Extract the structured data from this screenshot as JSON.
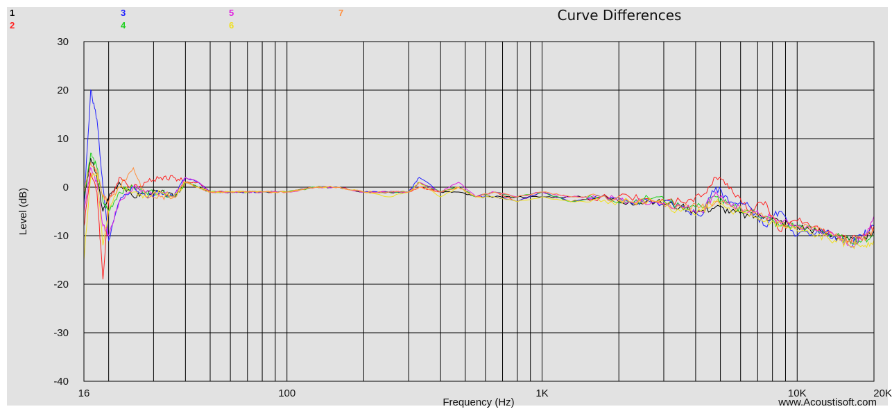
{
  "chart_data": {
    "type": "line",
    "title": "Curve Differences",
    "xlabel": "Frequency (Hz)",
    "ylabel": "Level (dB)",
    "watermark": "www.Acoustisoft.com",
    "x_scale": "log",
    "xlim": [
      16,
      20000
    ],
    "ylim": [
      -40,
      30
    ],
    "grid": true,
    "legend_position": "top-left",
    "background_color": "#e0e0e0",
    "x_tick_labels": [
      {
        "value": 16,
        "label": "16"
      },
      {
        "value": 100,
        "label": "100"
      },
      {
        "value": 1000,
        "label": "1K"
      },
      {
        "value": 10000,
        "label": "10K"
      },
      {
        "value": 20000,
        "label": "20K"
      }
    ],
    "x_gridlines": [
      20,
      30,
      40,
      50,
      60,
      70,
      80,
      90,
      100,
      200,
      300,
      400,
      500,
      600,
      700,
      800,
      900,
      1000,
      2000,
      3000,
      4000,
      5000,
      6000,
      7000,
      8000,
      9000,
      10000
    ],
    "y_ticks": [
      30,
      20,
      10,
      0,
      -10,
      -20,
      -30,
      -40
    ],
    "x": [
      16,
      17,
      18,
      19,
      20,
      22,
      25,
      28,
      32,
      36,
      40,
      45,
      50,
      60,
      70,
      80,
      100,
      130,
      160,
      200,
      250,
      300,
      330,
      400,
      470,
      550,
      650,
      800,
      1000,
      1300,
      1700,
      2200,
      2800,
      3500,
      4200,
      4800,
      5500,
      6500,
      7500,
      8500,
      10000,
      12000,
      14000,
      16000,
      18000,
      20000
    ],
    "series": [
      {
        "name": "1",
        "color": "#000000",
        "values": [
          -3,
          6,
          2,
          -5,
          -2,
          1,
          -2,
          -1,
          -1,
          -2,
          1,
          0,
          -1,
          -1,
          -1,
          -1,
          -1,
          0,
          0,
          -1,
          -1,
          -1,
          1,
          -1,
          -1,
          -2,
          -2,
          -2,
          -2,
          -2,
          -2,
          -3,
          -3,
          -4,
          -5,
          -4,
          -5,
          -6,
          -6,
          -7,
          -8,
          -9,
          -10,
          -11,
          -11,
          -9
        ]
      },
      {
        "name": "2",
        "color": "#ff2020",
        "values": [
          -8,
          3,
          -1,
          -19,
          -3,
          2,
          0,
          1,
          2,
          2,
          1,
          1,
          -1,
          -1,
          -1,
          -1,
          -1,
          0,
          0,
          -1,
          -1,
          -1,
          0,
          -1,
          0,
          -2,
          -1,
          -3,
          -1,
          -3,
          -2,
          -2,
          -3,
          -3,
          -2,
          2,
          0,
          -5,
          -3,
          -9,
          -7,
          -8,
          -10,
          -11,
          -10,
          -8
        ]
      },
      {
        "name": "3",
        "color": "#2020ff",
        "values": [
          -4,
          20,
          14,
          0,
          -11,
          -3,
          0,
          -2,
          -1,
          -2,
          2,
          1,
          -1,
          -1,
          -1,
          -1,
          -1,
          0,
          0,
          -1,
          -1,
          -1,
          2,
          -1,
          0,
          -2,
          -2,
          -3,
          -1,
          -3,
          -2,
          -3,
          -3,
          -4,
          -6,
          0,
          -3,
          -4,
          -8,
          -5,
          -10,
          -9,
          -10,
          -12,
          -10,
          -8
        ]
      },
      {
        "name": "4",
        "color": "#20d020",
        "values": [
          -2,
          7,
          4,
          -3,
          -5,
          -1,
          0,
          -1,
          -1,
          -2,
          1,
          0,
          -1,
          -1,
          -1,
          -1,
          -1,
          0,
          0,
          -1,
          -1,
          -1,
          1,
          -1,
          0,
          -2,
          -1,
          -2,
          -1,
          -3,
          -2,
          -3,
          -2,
          -4,
          -4,
          -2,
          -4,
          -5,
          -6,
          -8,
          -8,
          -9,
          -10,
          -11,
          -11,
          -10
        ]
      },
      {
        "name": "5",
        "color": "#e020e0",
        "values": [
          -5,
          4,
          1,
          -8,
          -10,
          -3,
          0,
          -1,
          -1,
          -2,
          2,
          1,
          -1,
          -1,
          -1,
          -1,
          -1,
          0,
          0,
          -1,
          -1,
          -1,
          1,
          -1,
          1,
          -2,
          -1,
          -2,
          -1,
          -2,
          -2,
          -3,
          -3,
          -4,
          -5,
          -1,
          -4,
          -5,
          -6,
          -7,
          -8,
          -9,
          -10,
          -12,
          -11,
          -6
        ]
      },
      {
        "name": "6",
        "color": "#f0e020",
        "values": [
          -15,
          2,
          3,
          -12,
          -5,
          0,
          -1,
          -2,
          -1,
          -2,
          1,
          0,
          -1,
          -1,
          -1,
          -1,
          -1,
          0,
          0,
          -1,
          -2,
          -1,
          1,
          -2,
          0,
          -2,
          -2,
          -3,
          -2,
          -3,
          -3,
          -3,
          -3,
          -5,
          -5,
          -3,
          -5,
          -6,
          -7,
          -8,
          -9,
          -10,
          -11,
          -12,
          -12,
          -11
        ]
      },
      {
        "name": "7",
        "color": "#ff9040",
        "values": [
          -1,
          5,
          3,
          -2,
          -3,
          0,
          4,
          -2,
          -2,
          -2,
          1,
          0,
          -1,
          -1,
          -1,
          -1,
          -1,
          0,
          0,
          -1,
          -1,
          -1,
          0,
          -1,
          0,
          -2,
          -1,
          -2,
          -1,
          -2,
          -2,
          -3,
          -3,
          -4,
          -4,
          -3,
          -4,
          -5,
          -6,
          -7,
          -8,
          -9,
          -10,
          -11,
          -11,
          -9
        ]
      }
    ]
  }
}
